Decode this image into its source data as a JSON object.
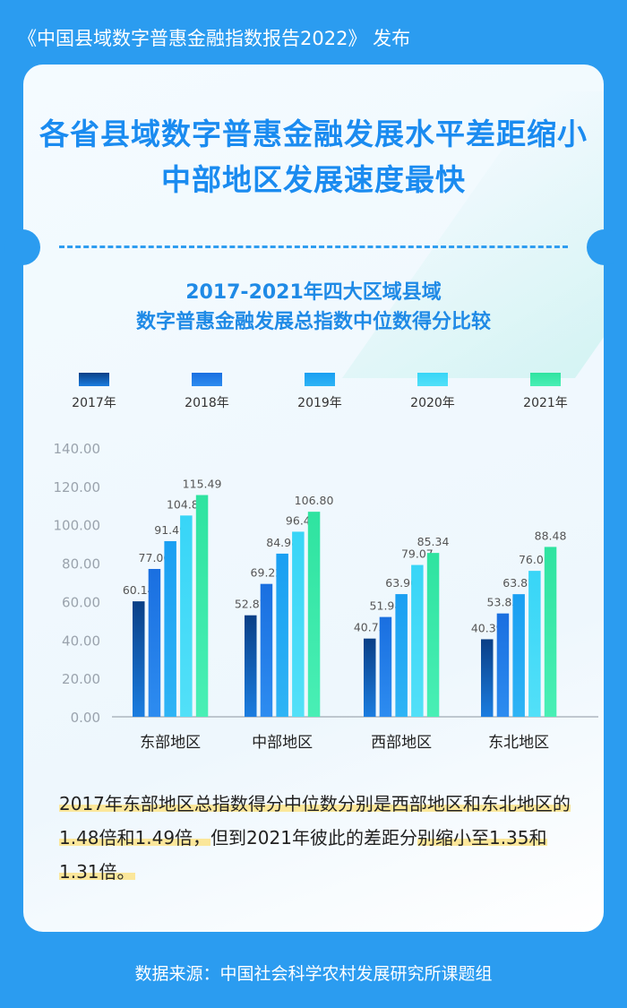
{
  "header": {
    "release_text": "《中国县域数字普惠金融指数报告2022》 发布"
  },
  "card": {
    "headline_line1": "各省县域数字普惠金融发展水平差距缩小",
    "headline_line2": "中部地区发展速度最快"
  },
  "chart_data": {
    "type": "bar",
    "title": [
      "2017-2021年四大区域县域",
      "数字普惠金融发展总指数中位数得分比较"
    ],
    "categories": [
      "东部地区",
      "中部地区",
      "西部地区",
      "东北地区"
    ],
    "series": [
      {
        "name": "2017年",
        "values": [
          60.14,
          52.87,
          40.75,
          40.39
        ],
        "labels": [
          "60.14",
          "52.87",
          "40.75",
          "40.39"
        ],
        "color_top": "#0a3f86",
        "color_bottom": "#1b7de0"
      },
      {
        "name": "2018年",
        "values": [
          77.0,
          69.22,
          51.98,
          53.83
        ],
        "labels": [
          "77.00",
          "69.22",
          "51.98",
          "53.83"
        ],
        "color_top": "#1a6fe0",
        "color_bottom": "#2d8cf0"
      },
      {
        "name": "2019年",
        "values": [
          91.49,
          84.98,
          63.9,
          63.87
        ],
        "labels": [
          "91.49",
          "84.98",
          "63.90",
          "63.87"
        ],
        "color_top": "#1a9ff2",
        "color_bottom": "#2eb4f5"
      },
      {
        "name": "2020年",
        "values": [
          104.84,
          96.4,
          79.07,
          76.01
        ],
        "labels": [
          "104.84",
          "96.4",
          "79.07",
          "76.01"
        ],
        "color_top": "#38d5f7",
        "color_bottom": "#52e0f8"
      },
      {
        "name": "2021年",
        "values": [
          115.49,
          106.8,
          85.34,
          88.48
        ],
        "labels": [
          "115.49",
          "106.80",
          "85.34",
          "88.48"
        ],
        "color_top": "#2fe3a0",
        "color_bottom": "#49efb5"
      }
    ],
    "ylim": [
      0,
      140
    ],
    "yticks": [
      "0.00",
      "20.00",
      "40.00",
      "60.00",
      "80.00",
      "100.00",
      "120.00",
      "140.00"
    ],
    "grid": false,
    "legend": "top"
  },
  "note": {
    "line_parts": [
      "2017年东部地区总指数得分中位数分别是西部地区和东",
      "北地区的1.48倍和1.49倍，",
      "但到2021年彼此的差距分",
      "别缩小至1.35和1.31倍。"
    ]
  },
  "footer": {
    "source": "数据来源：中国社会科学农村发展研究所课题组"
  },
  "colors": {
    "background": "#2b9cf0",
    "headline": "#1a8bf0",
    "highlight": "#fbe79a"
  }
}
